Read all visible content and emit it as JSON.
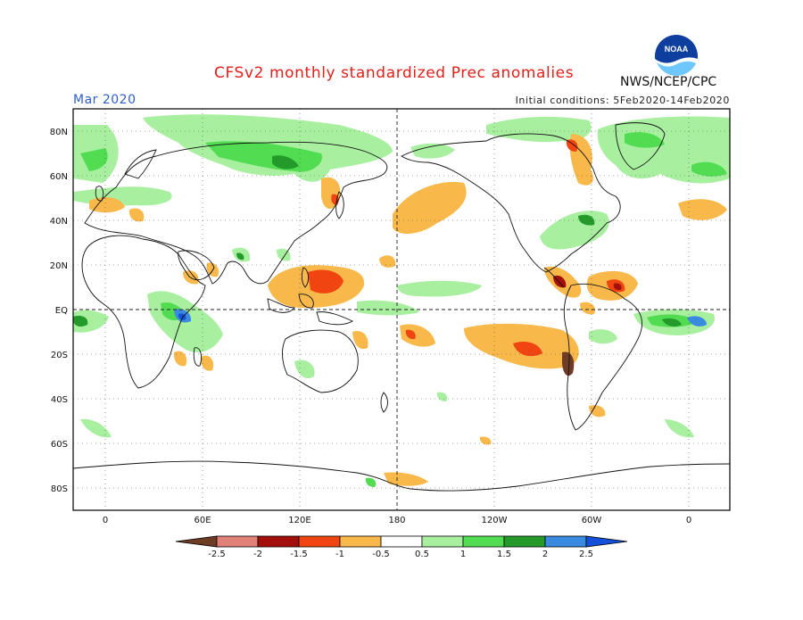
{
  "title": "CFSv2 monthly standardized Prec anomalies",
  "month": "Mar 2020",
  "initial_conditions": "Initial conditions: 5Feb2020-14Feb2020",
  "agency": "NWS/NCEP/CPC",
  "logo_text": "NOAA",
  "lat_labels": [
    "80N",
    "60N",
    "40N",
    "20N",
    "EQ",
    "20S",
    "40S",
    "60S",
    "80S"
  ],
  "lon_labels": [
    "0",
    "60E",
    "120E",
    "180",
    "120W",
    "60W",
    "0"
  ],
  "colorbar": {
    "labels": [
      "-2.5",
      "-2",
      "-1.5",
      "-1",
      "-0.5",
      "0.5",
      "1",
      "1.5",
      "2",
      "2.5"
    ],
    "colors": [
      "#6e3b24",
      "#e08078",
      "#a30f0a",
      "#f04510",
      "#f8b84a",
      "#ffffff",
      "#a8f0a0",
      "#52dc52",
      "#239a2a",
      "#3a8ae0",
      "#1450d8"
    ]
  },
  "colors": {
    "title": "#e0201a",
    "month": "#2f5fc8",
    "dry_light": "#f8b84a",
    "dry_mod": "#f04510",
    "dry_strong": "#a30f0a",
    "wet_light": "#a8f0a0",
    "wet_mod": "#52dc52",
    "wet_strong": "#239a2a",
    "wet_extreme": "#3a8ae0"
  }
}
